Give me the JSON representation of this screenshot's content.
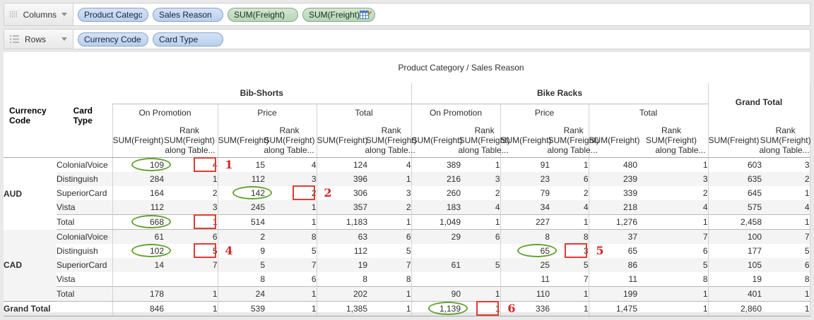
{
  "shelves": {
    "columns": {
      "label": "Columns",
      "pills": [
        {
          "label": "Product Category",
          "type": "dimension"
        },
        {
          "label": "Sales Reason",
          "type": "dimension"
        },
        {
          "label": "SUM(Freight)",
          "type": "measure"
        },
        {
          "label": "SUM(Freight)",
          "type": "measure",
          "icon": "table-calc"
        }
      ]
    },
    "rows": {
      "label": "Rows",
      "pills": [
        {
          "label": "Currency Code",
          "type": "dimension"
        },
        {
          "label": "Card Type",
          "type": "dimension"
        }
      ]
    }
  },
  "table": {
    "title": "Product Category / Sales Reason",
    "row_header_labels": [
      "Currency Code",
      "Card Type"
    ],
    "groups": [
      {
        "label": "Bib-Shorts",
        "subs": [
          "On Promotion",
          "Price",
          "Total"
        ]
      },
      {
        "label": "Bike Racks",
        "subs": [
          "On Promotion",
          "Price",
          "Total"
        ]
      },
      {
        "label": "Grand Total",
        "subs": []
      }
    ],
    "measure_header": {
      "sum": "SUM(Freight)",
      "rank": [
        "Rank",
        "SUM(Freight)",
        "along Table..."
      ]
    },
    "rows": [
      {
        "currency": "AUD",
        "card": "ColonialVoice",
        "values": [
          "109",
          "4",
          "15",
          "4",
          "124",
          "4",
          "389",
          "1",
          "91",
          "1",
          "480",
          "1",
          "603",
          "3"
        ]
      },
      {
        "currency": "",
        "card": "Distinguish",
        "values": [
          "284",
          "1",
          "112",
          "3",
          "396",
          "1",
          "216",
          "3",
          "23",
          "6",
          "239",
          "3",
          "635",
          "2"
        ]
      },
      {
        "currency": "",
        "card": "SuperiorCard",
        "values": [
          "164",
          "2",
          "142",
          "2",
          "306",
          "3",
          "260",
          "2",
          "79",
          "2",
          "339",
          "2",
          "645",
          "1"
        ]
      },
      {
        "currency": "",
        "card": "Vista",
        "values": [
          "112",
          "3",
          "245",
          "1",
          "357",
          "2",
          "183",
          "4",
          "34",
          "4",
          "218",
          "4",
          "575",
          "4"
        ]
      },
      {
        "currency": "",
        "card": "Total",
        "subtotal": true,
        "values": [
          "668",
          "1",
          "514",
          "1",
          "1,183",
          "1",
          "1,049",
          "1",
          "227",
          "1",
          "1,276",
          "1",
          "2,458",
          "1"
        ]
      },
      {
        "currency": "CAD",
        "card": "ColonialVoice",
        "values": [
          "61",
          "6",
          "2",
          "8",
          "63",
          "6",
          "29",
          "6",
          "8",
          "8",
          "37",
          "7",
          "100",
          "7"
        ]
      },
      {
        "currency": "",
        "card": "Distinguish",
        "values": [
          "102",
          "5",
          "9",
          "5",
          "112",
          "5",
          "",
          "",
          "65",
          "3",
          "65",
          "6",
          "177",
          "5"
        ]
      },
      {
        "currency": "",
        "card": "SuperiorCard",
        "values": [
          "14",
          "7",
          "5",
          "7",
          "19",
          "7",
          "61",
          "5",
          "25",
          "5",
          "86",
          "5",
          "105",
          "6"
        ]
      },
      {
        "currency": "",
        "card": "Vista",
        "values": [
          "",
          "",
          "8",
          "6",
          "8",
          "8",
          "",
          "",
          "11",
          "7",
          "11",
          "8",
          "19",
          "8"
        ]
      },
      {
        "currency": "",
        "card": "Total",
        "subtotal": true,
        "values": [
          "178",
          "1",
          "24",
          "1",
          "202",
          "1",
          "90",
          "1",
          "110",
          "1",
          "199",
          "1",
          "401",
          "1"
        ]
      }
    ],
    "grand_total": {
      "label": "Grand Total",
      "values": [
        "846",
        "1",
        "539",
        "1",
        "1,385",
        "1",
        "1,139",
        "1",
        "336",
        "1",
        "1,475",
        "1",
        "2,860",
        "1"
      ]
    }
  },
  "annotations": [
    {
      "label": "1",
      "row_index": 0,
      "group_index": 0,
      "circled_value": "109",
      "boxed_value": "4"
    },
    {
      "label": "2",
      "row_index": 2,
      "group_index": 1,
      "circled_value": "142",
      "boxed_value": "2"
    },
    {
      "label": "",
      "row_index": 4,
      "group_index": 0,
      "circled_value": "668",
      "boxed_value": "1"
    },
    {
      "label": "4",
      "row_index": 6,
      "group_index": 0,
      "circled_value": "102",
      "boxed_value": "5"
    },
    {
      "label": "5",
      "row_index": 6,
      "group_index": 4,
      "circled_value": "65",
      "boxed_value": "3"
    },
    {
      "label": "6",
      "row_index": 10,
      "group_index": 3,
      "circled_value": "1,139",
      "boxed_value": "1"
    }
  ],
  "colors": {
    "dimension_pill": "#c3d5ee",
    "measure_pill": "#c0ddc0",
    "annotation_green": "#64a433",
    "annotation_red": "#e03c34",
    "row_band": "#f4f4f4"
  }
}
